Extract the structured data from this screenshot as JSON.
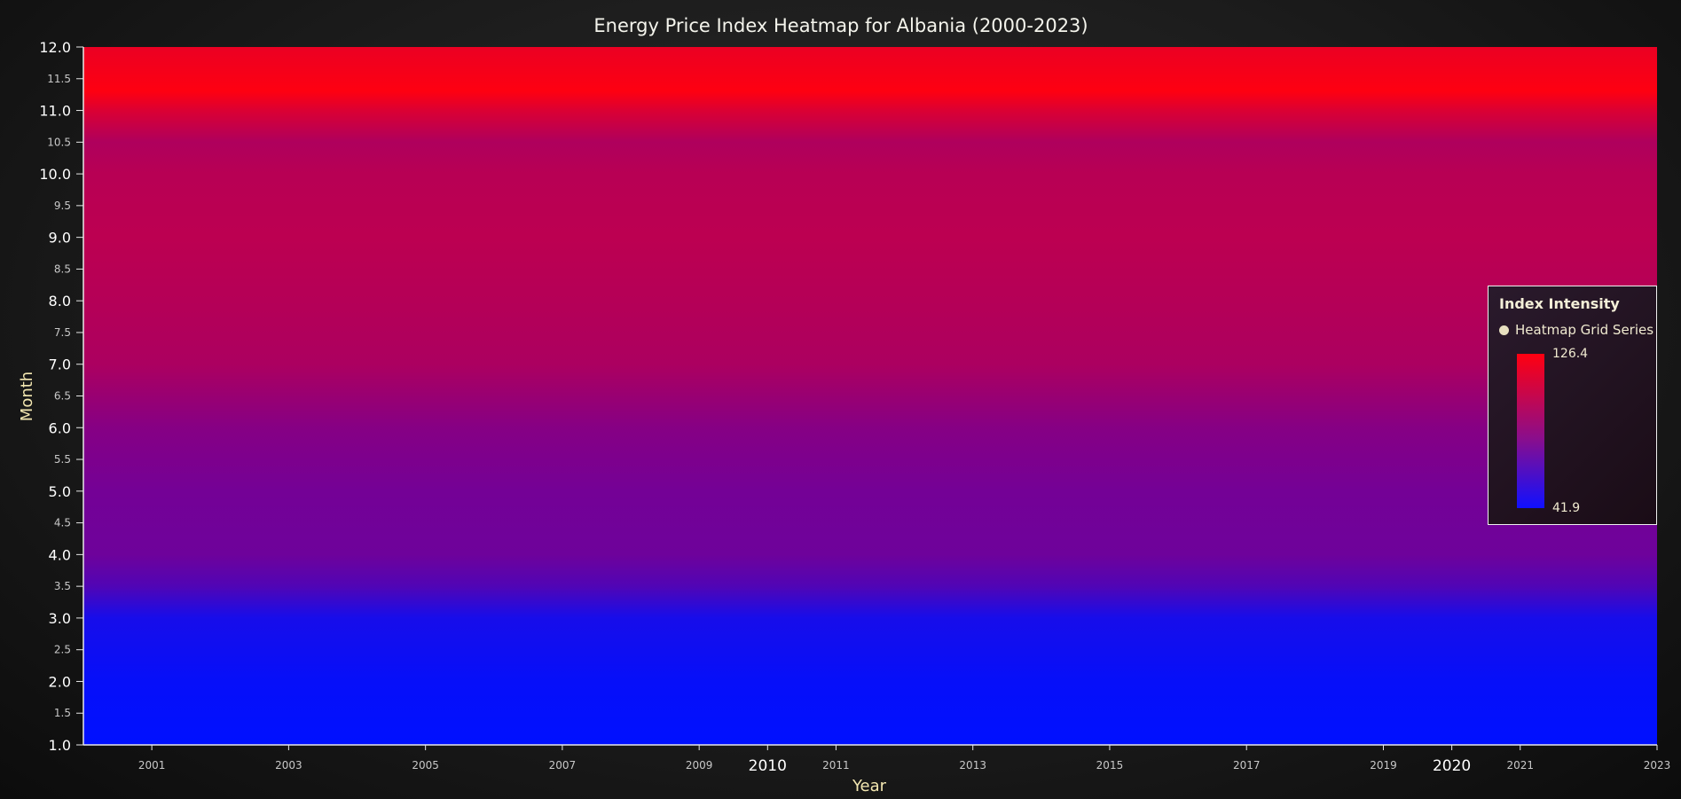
{
  "chart_data": {
    "type": "heatmap",
    "title": "Energy Price Index Heatmap for Albania (2000-2023)",
    "xlabel": "Year",
    "ylabel": "Month",
    "xlim": [
      2000,
      2023
    ],
    "ylim": [
      1.0,
      12.0
    ],
    "x_major_ticks": [
      2010,
      2020
    ],
    "x_minor_ticks": [
      2001,
      2003,
      2005,
      2007,
      2009,
      2011,
      2013,
      2015,
      2017,
      2019,
      2021,
      2023
    ],
    "y_major_ticks": [
      "1.0",
      "2.0",
      "3.0",
      "4.0",
      "5.0",
      "6.0",
      "7.0",
      "8.0",
      "9.0",
      "10.0",
      "11.0",
      "12.0"
    ],
    "y_minor_ticks": [
      "1.5",
      "2.5",
      "3.5",
      "4.5",
      "5.5",
      "6.5",
      "7.5",
      "8.5",
      "9.5",
      "10.5",
      "11.5"
    ],
    "value_range": [
      41.9,
      126.4
    ],
    "colors": {
      "low": "#0010ff",
      "mid": "#7a0090",
      "high": "#ff0010"
    },
    "month_profile": [
      {
        "month": 1.0,
        "value": 42
      },
      {
        "month": 2.0,
        "value": 44
      },
      {
        "month": 3.0,
        "value": 50
      },
      {
        "month": 3.5,
        "value": 70
      },
      {
        "month": 4.0,
        "value": 80
      },
      {
        "month": 5.0,
        "value": 82
      },
      {
        "month": 6.0,
        "value": 88
      },
      {
        "month": 7.0,
        "value": 100
      },
      {
        "month": 8.0,
        "value": 103
      },
      {
        "month": 9.0,
        "value": 105
      },
      {
        "month": 10.0,
        "value": 104
      },
      {
        "month": 10.5,
        "value": 101
      },
      {
        "month": 11.0,
        "value": 115
      },
      {
        "month": 11.3,
        "value": 126
      },
      {
        "month": 12.0,
        "value": 120
      }
    ],
    "legend": {
      "title": "Index Intensity",
      "series_name": "Heatmap Grid Series",
      "max_label": "126.4",
      "min_label": "41.9",
      "placement": "right"
    }
  }
}
